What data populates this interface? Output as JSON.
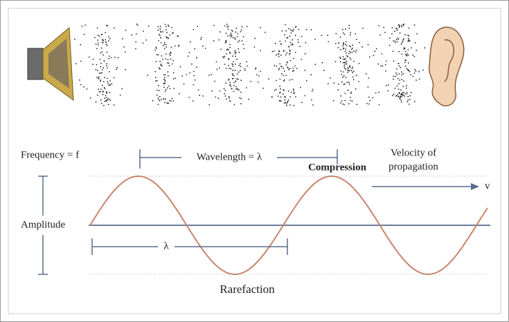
{
  "labels": {
    "frequency": "Frequency = f",
    "wavelength": "Wavelength = λ",
    "compression": "Compression",
    "velocity_line1": "Velocity of",
    "velocity_line2": "propagation",
    "velocity_symbol": "v",
    "amplitude": "Amplitude",
    "lambda": "λ",
    "rarefaction": "Rarefaction"
  }
}
